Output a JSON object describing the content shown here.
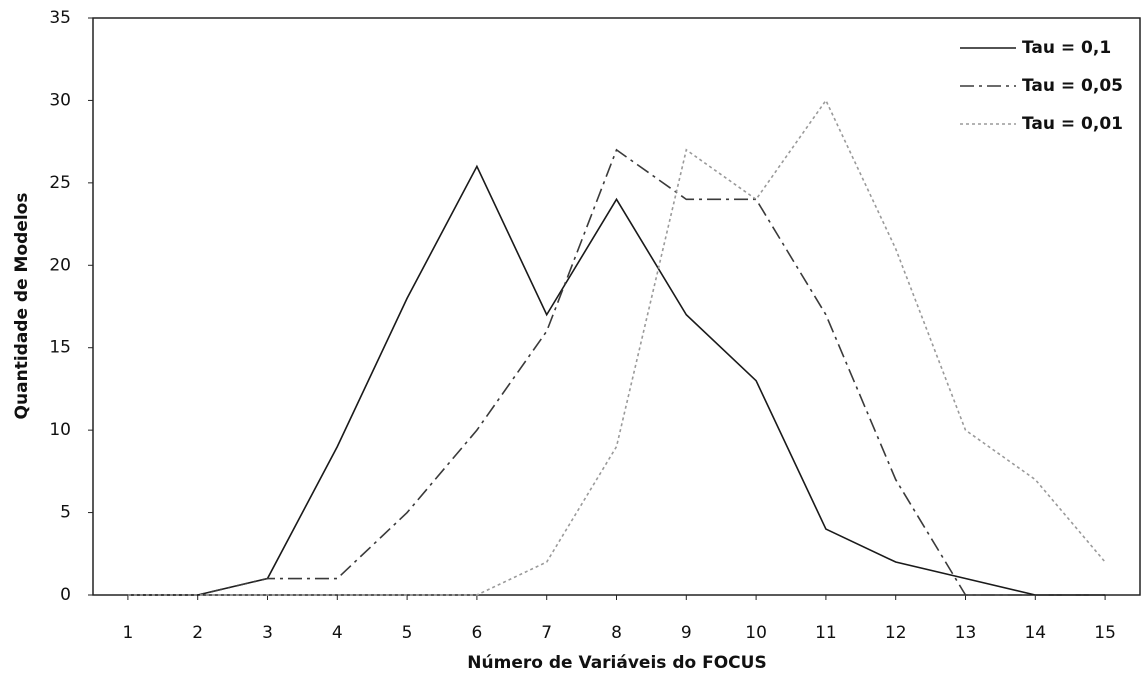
{
  "chart_data": {
    "type": "line",
    "x_label": "Número de Variáveis do FOCUS",
    "y_label": "Quantidade de Modelos",
    "x": [
      1,
      2,
      3,
      4,
      5,
      6,
      7,
      8,
      9,
      10,
      11,
      12,
      13,
      14,
      15
    ],
    "xlim": [
      0.5,
      15.5
    ],
    "xticks": [
      1,
      2,
      3,
      4,
      5,
      6,
      7,
      8,
      9,
      10,
      11,
      12,
      13,
      14,
      15
    ],
    "ylim": [
      0,
      35
    ],
    "yticks": [
      0,
      5,
      10,
      15,
      20,
      25,
      30,
      35
    ],
    "legend": "top-right",
    "series": [
      {
        "name": "Tau = 0,1",
        "color": "#1a1a1a",
        "dash": "solid",
        "values": [
          0,
          0,
          1,
          9,
          18,
          26,
          17,
          24,
          17,
          13,
          4,
          2,
          1,
          0,
          0
        ]
      },
      {
        "name": "Tau = 0,05",
        "color": "#3a3a3a",
        "dash": "dashdot",
        "values": [
          0,
          0,
          1,
          1,
          5,
          10,
          16,
          27,
          24,
          24,
          17,
          7,
          0,
          0,
          0
        ]
      },
      {
        "name": "Tau = 0,01",
        "color": "#9a9a9a",
        "dash": "dotted",
        "values": [
          0,
          0,
          0,
          0,
          0,
          0,
          2,
          9,
          27,
          24,
          30,
          21,
          10,
          7,
          2
        ]
      }
    ]
  }
}
